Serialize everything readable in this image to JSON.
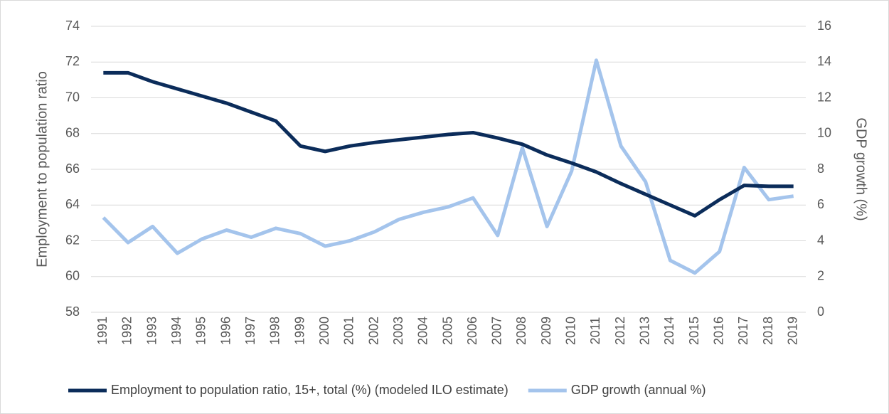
{
  "chart_data": {
    "type": "line",
    "categories": [
      "1991",
      "1992",
      "1993",
      "1994",
      "1995",
      "1996",
      "1997",
      "1998",
      "1999",
      "2000",
      "2001",
      "2002",
      "2003",
      "2004",
      "2005",
      "2006",
      "2007",
      "2008",
      "2009",
      "2010",
      "2011",
      "2012",
      "2013",
      "2014",
      "2015",
      "2016",
      "2017",
      "2018",
      "2019"
    ],
    "series": [
      {
        "name": "Employment to population ratio, 15+, total (%) (modeled ILO estimate)",
        "color": "#0b2c5a",
        "axis": "y",
        "values": [
          71.4,
          71.4,
          70.9,
          70.5,
          70.1,
          69.7,
          69.2,
          68.7,
          67.3,
          67.0,
          67.3,
          67.5,
          67.65,
          67.8,
          67.95,
          68.05,
          67.75,
          67.4,
          66.8,
          66.35,
          65.85,
          65.2,
          64.6,
          64.0,
          63.4,
          64.3,
          65.1,
          65.05,
          65.05
        ]
      },
      {
        "name": "GDP growth (annual %)",
        "color": "#a4c4ec",
        "axis": "y2",
        "values": [
          5.3,
          3.9,
          4.8,
          3.3,
          4.1,
          4.6,
          4.2,
          4.7,
          4.4,
          3.7,
          4.0,
          4.5,
          5.2,
          5.6,
          5.9,
          6.4,
          4.3,
          9.2,
          4.8,
          7.9,
          14.1,
          9.3,
          7.3,
          2.9,
          2.2,
          3.4,
          8.1,
          6.3,
          6.5
        ]
      }
    ],
    "ylabel": "Employment to population ratio",
    "y2label": "GDP growth (%)",
    "ylim": [
      58,
      74
    ],
    "yticks": [
      58,
      60,
      62,
      64,
      66,
      68,
      70,
      72,
      74
    ],
    "y2lim": [
      0,
      16
    ],
    "y2ticks": [
      0,
      2,
      4,
      6,
      8,
      10,
      12,
      14,
      16
    ],
    "grid": true
  }
}
